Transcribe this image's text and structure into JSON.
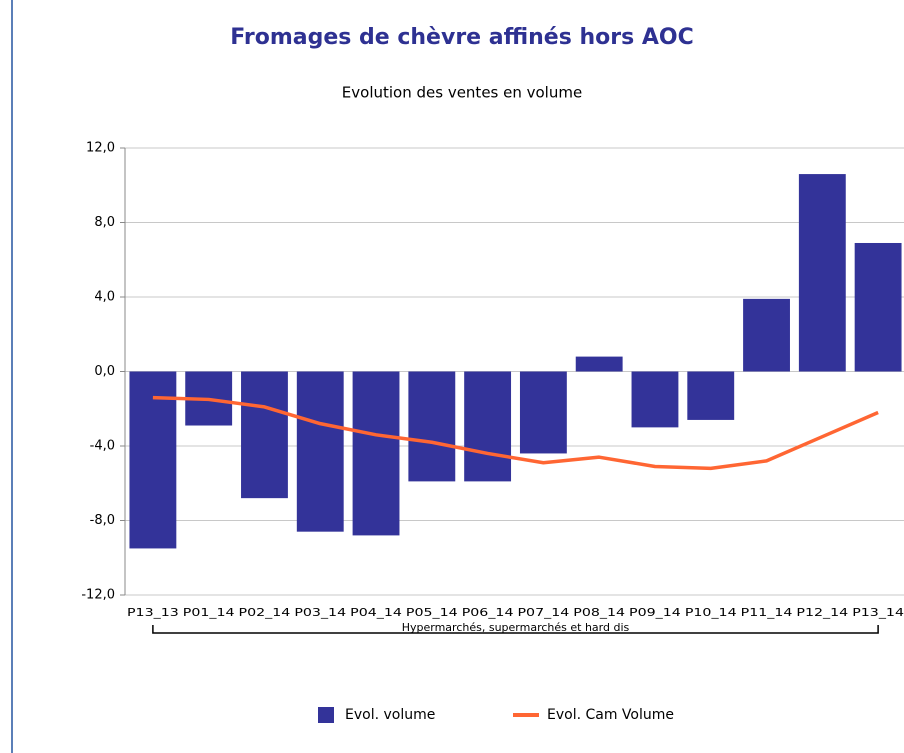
{
  "chart_data": {
    "type": "bar_line",
    "title": "Fromages de chèvre affinés hors AOC",
    "subtitle": "Evolution des ventes en volume",
    "categories": [
      "P13_13",
      "P01_14",
      "P02_14",
      "P03_14",
      "P04_14",
      "P05_14",
      "P06_14",
      "P07_14",
      "P08_14",
      "P09_14",
      "P10_14",
      "P11_14",
      "P12_14",
      "P13_14"
    ],
    "group_label": "Hypermarchés, supermarchés et hard dis",
    "series": [
      {
        "name": "Evol. volume",
        "type": "bar",
        "color": "#333399",
        "values": [
          -9.5,
          -2.9,
          -6.8,
          -8.6,
          -8.8,
          -5.9,
          -5.9,
          -4.4,
          0.8,
          -3.0,
          -2.6,
          3.9,
          10.6,
          6.9
        ]
      },
      {
        "name": "Evol. Cam Volume",
        "type": "line",
        "color": "#ff6633",
        "values": [
          -1.4,
          -1.5,
          -1.9,
          -2.8,
          -3.4,
          -3.8,
          -4.4,
          -4.9,
          -4.6,
          -5.1,
          -5.2,
          -4.8,
          -3.5,
          -2.2
        ]
      }
    ],
    "ylim": [
      -12,
      12
    ],
    "yticks": [
      {
        "value": -12,
        "label": "-12,0"
      },
      {
        "value": -8,
        "label": "-8,0"
      },
      {
        "value": -4,
        "label": "-4,0"
      },
      {
        "value": 0,
        "label": "0,0"
      },
      {
        "value": 4,
        "label": "4,0"
      },
      {
        "value": 8,
        "label": "8,0"
      },
      {
        "value": 12,
        "label": "12,0"
      }
    ],
    "grid": true
  }
}
